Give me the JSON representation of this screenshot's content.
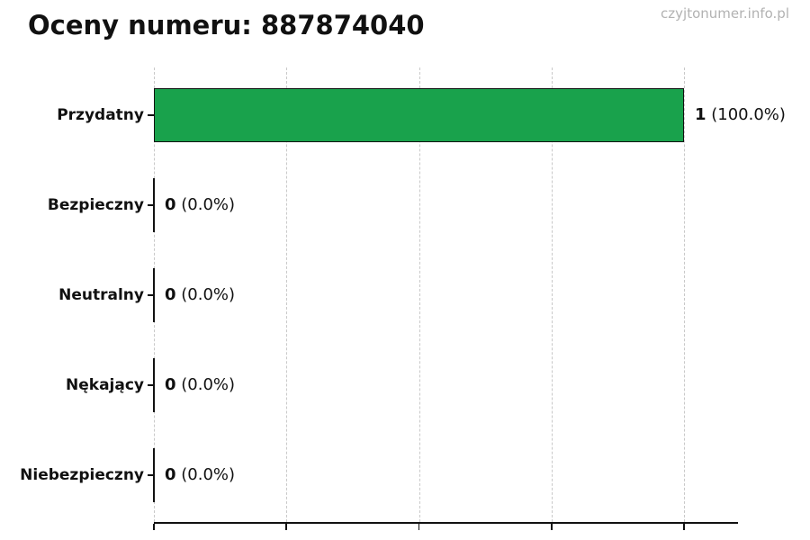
{
  "header": {
    "title": "Oceny numeru: 887874040",
    "watermark": "czyjtonumer.info.pl"
  },
  "chart_data": {
    "type": "bar",
    "orientation": "horizontal",
    "title": "Oceny numeru: 887874040",
    "categories": [
      "Przydatny",
      "Bezpieczny",
      "Neutralny",
      "Nękający",
      "Niebezpieczny"
    ],
    "values": [
      1,
      0,
      0,
      0,
      0
    ],
    "bars": [
      {
        "category": "Przydatny",
        "value": 1,
        "count_label": "1",
        "percent_label": "(100.0%)"
      },
      {
        "category": "Bezpieczny",
        "value": 0,
        "count_label": "0",
        "percent_label": "(0.0%)"
      },
      {
        "category": "Neutralny",
        "value": 0,
        "count_label": "0",
        "percent_label": "(0.0%)"
      },
      {
        "category": "Nękający",
        "value": 0,
        "count_label": "0",
        "percent_label": "(0.0%)"
      },
      {
        "category": "Niebezpieczny",
        "value": 0,
        "count_label": "0",
        "percent_label": "(0.0%)"
      }
    ],
    "x_ticks": [
      0,
      0.25,
      0.5,
      0.75,
      1.0
    ],
    "xlim": [
      0,
      1.1
    ],
    "grid": true,
    "legend_position": "none",
    "colors": {
      "bar_fill": "#19a24c",
      "bar_edge": "#111111",
      "grid_line": "#c9c9c9",
      "axis_line": "#111111",
      "text": "#111111",
      "watermark": "#b2b2b2",
      "background": "#ffffff"
    }
  }
}
